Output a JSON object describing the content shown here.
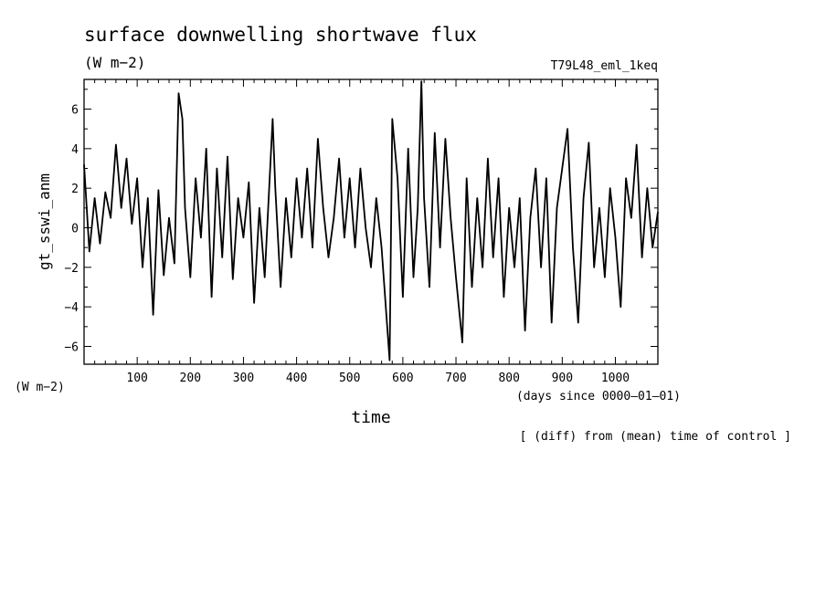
{
  "chart_data": {
    "type": "line",
    "title": "surface downwelling shortwave flux",
    "units": "(W m−2)",
    "run_label": "T79L48_eml_1keq",
    "ylabel": "gt_sswi_anm",
    "y_units_label": "(W m−2)",
    "xlabel": "time",
    "x_units_label": "(days since 0000–01–01)",
    "footnote": "[ (diff) from (mean) time of control ]",
    "xlim": [
      0,
      1080
    ],
    "ylim": [
      -6.9,
      7.5
    ],
    "xticks": [
      100,
      200,
      300,
      400,
      500,
      600,
      700,
      800,
      900,
      1000
    ],
    "xtick_labels": [
      "100",
      "200",
      "300",
      "400",
      "500",
      "600",
      "700",
      "800",
      "900",
      "1000"
    ],
    "yticks": [
      -6,
      -4,
      -2,
      0,
      2,
      4,
      6
    ],
    "ytick_labels": [
      "−6",
      "−4",
      "−2",
      "0",
      "2",
      "4",
      "6"
    ],
    "series": [
      {
        "x": [
          0,
          10,
          20,
          30,
          40,
          50,
          60,
          70,
          80,
          90,
          100,
          110,
          120,
          130,
          140,
          150,
          160,
          170,
          178,
          185,
          190,
          200,
          210,
          220,
          230,
          240,
          250,
          260,
          270,
          280,
          290,
          300,
          310,
          320,
          330,
          340,
          355,
          360,
          370,
          380,
          390,
          400,
          410,
          420,
          430,
          440,
          450,
          460,
          470,
          480,
          490,
          500,
          510,
          520,
          530,
          540,
          550,
          560,
          575,
          580,
          590,
          600,
          610,
          620,
          628,
          635,
          640,
          650,
          660,
          670,
          680,
          690,
          700,
          712,
          720,
          730,
          740,
          750,
          760,
          770,
          780,
          790,
          800,
          810,
          820,
          830,
          840,
          850,
          860,
          870,
          880,
          890,
          900,
          910,
          920,
          930,
          940,
          950,
          960,
          970,
          980,
          990,
          1000,
          1010,
          1020,
          1030,
          1040,
          1050,
          1060,
          1070,
          1080
        ],
        "y": [
          3.2,
          -1.2,
          1.5,
          -0.8,
          1.8,
          0.5,
          4.2,
          1.0,
          3.5,
          0.2,
          2.5,
          -2.0,
          1.5,
          -4.4,
          1.9,
          -2.4,
          0.5,
          -1.8,
          6.8,
          5.5,
          1.0,
          -2.5,
          2.5,
          -0.5,
          4.0,
          -3.5,
          3.0,
          -1.5,
          3.6,
          -2.6,
          1.5,
          -0.5,
          2.3,
          -3.8,
          1.0,
          -2.5,
          5.5,
          2.0,
          -3.0,
          1.5,
          -1.5,
          2.5,
          -0.5,
          3.0,
          -1.0,
          4.5,
          1.0,
          -1.5,
          0.5,
          3.5,
          -0.5,
          2.5,
          -1.0,
          3.0,
          0.0,
          -2.0,
          1.5,
          -1.0,
          -6.7,
          5.5,
          2.5,
          -3.5,
          4.0,
          -2.5,
          1.0,
          7.4,
          1.5,
          -3.0,
          4.8,
          -1.0,
          4.5,
          0.5,
          -2.5,
          -5.8,
          2.5,
          -3.0,
          1.5,
          -2.0,
          3.5,
          -1.5,
          2.5,
          -3.5,
          1.0,
          -2.0,
          1.5,
          -5.2,
          0.5,
          3.0,
          -2.0,
          2.5,
          -4.8,
          1.0,
          3.0,
          5.0,
          -1.0,
          -4.8,
          1.5,
          4.3,
          -2.0,
          1.0,
          -2.5,
          2.0,
          -0.5,
          -4.0,
          2.5,
          0.5,
          4.2,
          -1.5,
          2.0,
          -1.0,
          0.8
        ]
      }
    ]
  }
}
